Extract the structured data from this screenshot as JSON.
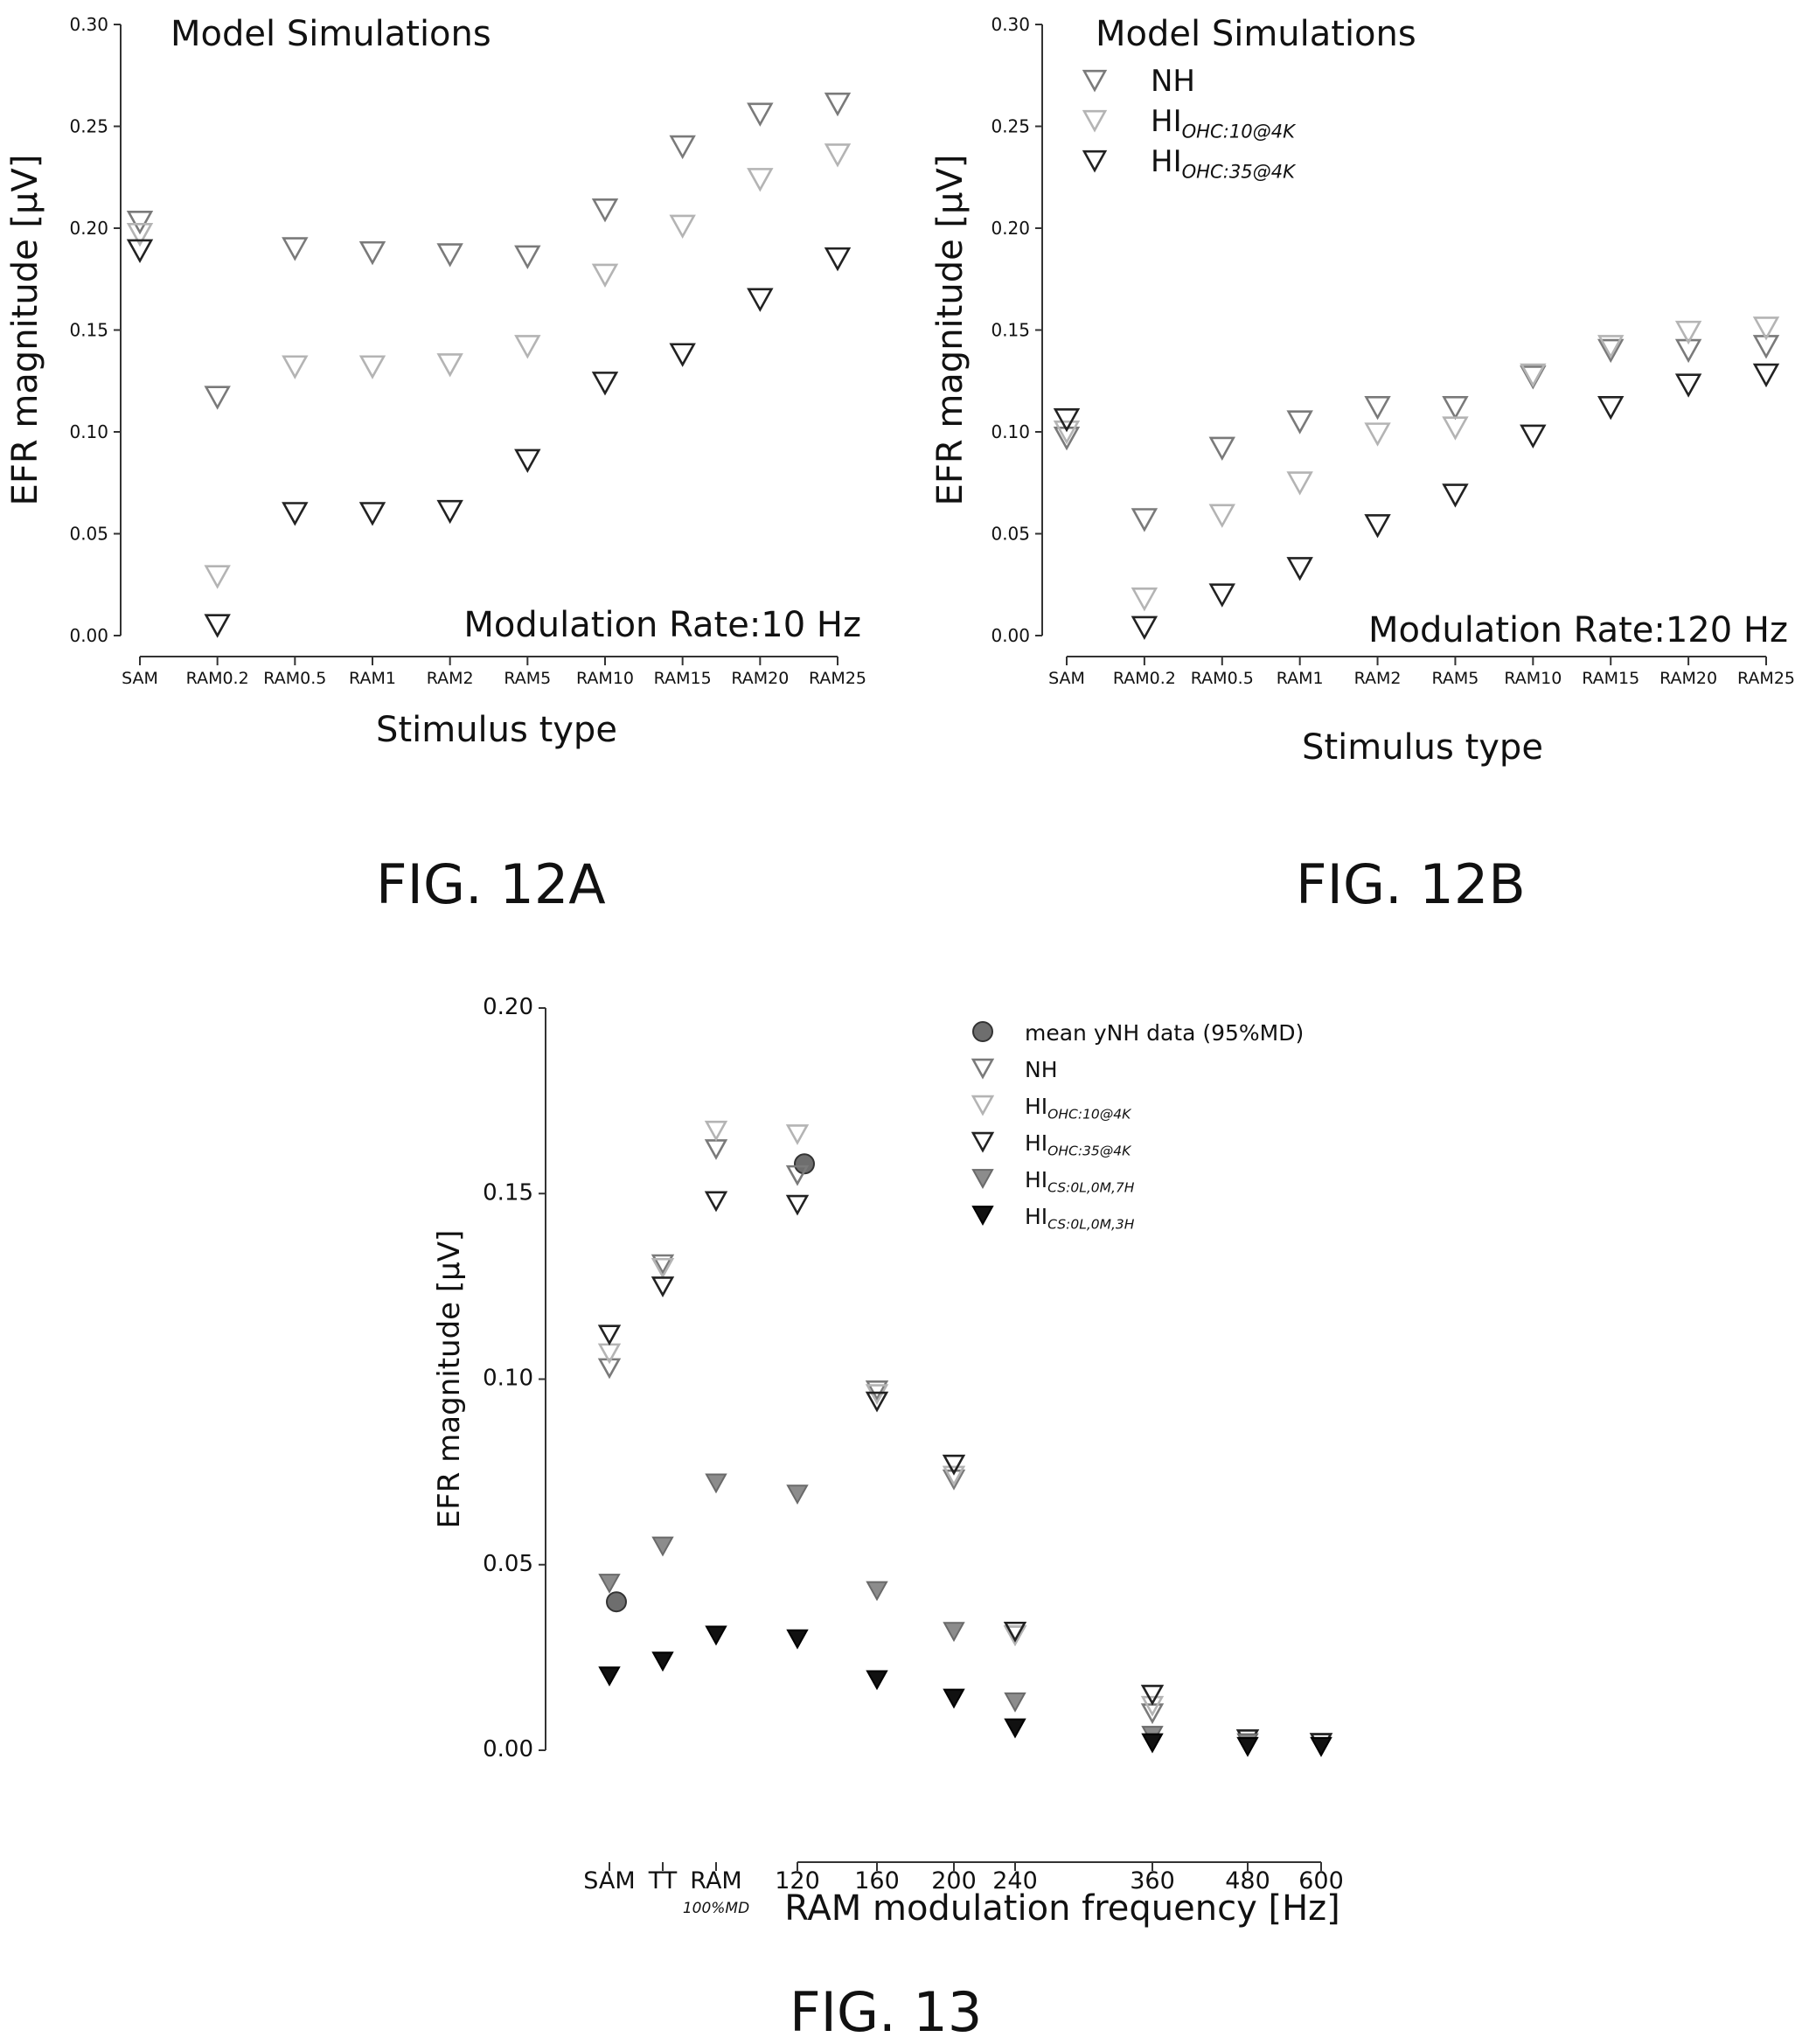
{
  "charts": [
    {
      "type": "scatter",
      "title": "Model Simulations",
      "annotation": "Modulation Rate:10 Hz",
      "xlabel": "Stimulus type",
      "ylabel": "EFR magnitude [μV]",
      "ylim": [
        0,
        0.3
      ],
      "yticks": [
        "0.00",
        "0.05",
        "0.10",
        "0.15",
        "0.20",
        "0.25",
        "0.30"
      ],
      "categories": [
        "SAM",
        "RAM0.2",
        "RAM0.5",
        "RAM1",
        "RAM2",
        "RAM5",
        "RAM10",
        "RAM15",
        "RAM20",
        "RAM25"
      ],
      "legend": "none",
      "series": [
        {
          "key": "nh",
          "values": [
            0.203,
            0.117,
            0.19,
            0.188,
            0.187,
            0.186,
            0.209,
            0.24,
            0.256,
            0.261
          ]
        },
        {
          "key": "hi10",
          "values": [
            0.197,
            0.029,
            0.132,
            0.132,
            0.133,
            0.142,
            0.177,
            0.201,
            0.224,
            0.236
          ]
        },
        {
          "key": "hi35",
          "values": [
            0.189,
            0.005,
            0.06,
            0.06,
            0.061,
            0.086,
            0.124,
            0.138,
            0.165,
            0.185
          ]
        }
      ]
    },
    {
      "type": "scatter",
      "title": "Model Simulations",
      "annotation": "Modulation Rate:120 Hz",
      "xlabel": "Stimulus type",
      "ylabel": "EFR magnitude [μV]",
      "ylim": [
        0,
        0.3
      ],
      "yticks": [
        "0.00",
        "0.05",
        "0.10",
        "0.15",
        "0.20",
        "0.25",
        "0.30"
      ],
      "categories": [
        "SAM",
        "RAM0.2",
        "RAM0.5",
        "RAM1",
        "RAM2",
        "RAM5",
        "RAM10",
        "RAM15",
        "RAM20",
        "RAM25"
      ],
      "legend": "top-left",
      "series": [
        {
          "key": "nh",
          "name": "NH",
          "values": [
            0.097,
            0.057,
            0.092,
            0.105,
            0.112,
            0.112,
            0.127,
            0.14,
            0.14,
            0.142
          ]
        },
        {
          "key": "hi10",
          "name": "HI",
          "sub": "OHC:10@4K",
          "values": [
            0.1,
            0.018,
            0.059,
            0.075,
            0.099,
            0.102,
            0.128,
            0.142,
            0.149,
            0.151
          ]
        },
        {
          "key": "hi35",
          "name": "HI",
          "sub": "OHC:35@4K",
          "values": [
            0.106,
            0.004,
            0.02,
            0.033,
            0.054,
            0.069,
            0.098,
            0.112,
            0.123,
            0.128
          ]
        }
      ]
    },
    {
      "type": "scatter",
      "xlabel": "RAM modulation frequency [Hz]",
      "ylabel": "EFR magnitude [μV]",
      "ylim": [
        0,
        0.2
      ],
      "yticks": [
        "0.00",
        "0.05",
        "0.10",
        "0.15",
        "0.20"
      ],
      "categories": [
        "SAM",
        "TT",
        "RAM",
        "120",
        "160",
        "200",
        "240",
        "360",
        "480",
        "600"
      ],
      "category_sublabel": {
        "index": 2,
        "text": "100%MD"
      },
      "legend": "top-right",
      "series": [
        {
          "key": "data",
          "name": "mean yNH data (95%MD)",
          "points": [
            [
              "SAM",
              0.04
            ],
            [
              "120",
              0.158
            ]
          ]
        },
        {
          "key": "nh",
          "name": "NH",
          "points": [
            [
              "SAM",
              0.103
            ],
            [
              "TT",
              0.131
            ],
            [
              "RAM",
              0.162
            ],
            [
              "120",
              0.155
            ],
            [
              "160",
              0.097
            ],
            [
              "200",
              0.073
            ],
            [
              "240",
              0.031
            ],
            [
              "360",
              0.01
            ],
            [
              "480",
              0.003
            ],
            [
              "600",
              0.002
            ]
          ]
        },
        {
          "key": "hi10",
          "name": "HI",
          "sub": "OHC:10@4K",
          "points": [
            [
              "SAM",
              0.107
            ],
            [
              "TT",
              0.13
            ],
            [
              "RAM",
              0.167
            ],
            [
              "120",
              0.166
            ],
            [
              "160",
              0.096
            ],
            [
              "200",
              0.074
            ],
            [
              "240",
              0.031
            ],
            [
              "360",
              0.012
            ],
            [
              "480",
              0.003
            ],
            [
              "600",
              0.002
            ]
          ]
        },
        {
          "key": "hi35",
          "name": "HI",
          "sub": "OHC:35@4K",
          "points": [
            [
              "SAM",
              0.112
            ],
            [
              "TT",
              0.125
            ],
            [
              "RAM",
              0.148
            ],
            [
              "120",
              0.147
            ],
            [
              "160",
              0.094
            ],
            [
              "200",
              0.077
            ],
            [
              "240",
              0.032
            ],
            [
              "360",
              0.015
            ],
            [
              "480",
              0.003
            ],
            [
              "600",
              0.002
            ]
          ]
        },
        {
          "key": "cs7",
          "name": "HI",
          "sub": "CS:0L,0M,7H",
          "points": [
            [
              "SAM",
              0.045
            ],
            [
              "TT",
              0.055
            ],
            [
              "RAM",
              0.072
            ],
            [
              "120",
              0.069
            ],
            [
              "160",
              0.043
            ],
            [
              "200",
              0.032
            ],
            [
              "240",
              0.013
            ],
            [
              "360",
              0.004
            ],
            [
              "480",
              0.002
            ],
            [
              "600",
              0.001
            ]
          ]
        },
        {
          "key": "cs3",
          "name": "HI",
          "sub": "CS:0L,0M,3H",
          "points": [
            [
              "SAM",
              0.02
            ],
            [
              "TT",
              0.024
            ],
            [
              "RAM",
              0.031
            ],
            [
              "120",
              0.03
            ],
            [
              "160",
              0.019
            ],
            [
              "200",
              0.014
            ],
            [
              "240",
              0.006
            ],
            [
              "360",
              0.002
            ],
            [
              "480",
              0.001
            ],
            [
              "600",
              0.001
            ]
          ]
        }
      ]
    }
  ],
  "colors": {
    "nh": "#7a7a7a",
    "hi10": "#b4b4b4",
    "hi35": "#222222",
    "cs7": "#8c8c8c",
    "cs3": "#111111",
    "data": "#6e6e6e",
    "axis": "#333333"
  },
  "captions": [
    "FIG. 12A",
    "FIG. 12B",
    "FIG. 13"
  ]
}
